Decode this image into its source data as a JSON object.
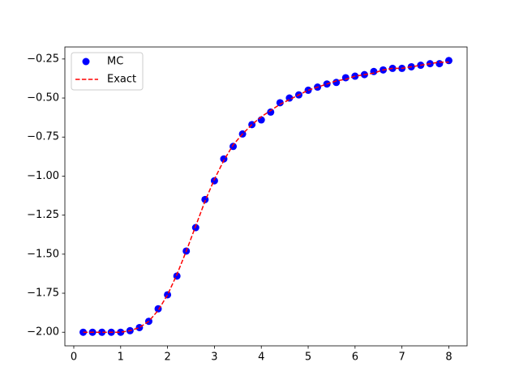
{
  "chart_data": {
    "type": "line",
    "x": [
      0.2,
      0.4,
      0.6,
      0.8,
      1.0,
      1.2,
      1.4,
      1.6,
      1.8,
      2.0,
      2.2,
      2.4,
      2.6,
      2.8,
      3.0,
      3.2,
      3.4,
      3.6,
      3.8,
      4.0,
      4.2,
      4.4,
      4.6,
      4.8,
      5.0,
      5.2,
      5.4,
      5.6,
      5.8,
      6.0,
      6.2,
      6.4,
      6.6,
      6.8,
      7.0,
      7.2,
      7.4,
      7.6,
      7.8,
      8.0
    ],
    "series": [
      {
        "name": "MC",
        "color": "#0000ff",
        "marker": "o",
        "values": [
          -2.0,
          -2.0,
          -2.0,
          -2.0,
          -2.0,
          -1.99,
          -1.97,
          -1.93,
          -1.85,
          -1.76,
          -1.64,
          -1.48,
          -1.33,
          -1.15,
          -1.03,
          -0.89,
          -0.81,
          -0.73,
          -0.67,
          -0.64,
          -0.59,
          -0.53,
          -0.5,
          -0.48,
          -0.45,
          -0.43,
          -0.41,
          -0.4,
          -0.37,
          -0.36,
          -0.35,
          -0.33,
          -0.32,
          -0.31,
          -0.31,
          -0.3,
          -0.29,
          -0.28,
          -0.28,
          -0.26
        ]
      },
      {
        "name": "Exact",
        "color": "#ff0000",
        "linestyle": "--",
        "values": [
          -2.0,
          -2.0,
          -2.0,
          -2.0,
          -2.0,
          -1.99,
          -1.97,
          -1.93,
          -1.86,
          -1.76,
          -1.63,
          -1.48,
          -1.32,
          -1.16,
          -1.02,
          -0.9,
          -0.8,
          -0.73,
          -0.67,
          -0.62,
          -0.58,
          -0.54,
          -0.51,
          -0.48,
          -0.45,
          -0.43,
          -0.41,
          -0.39,
          -0.38,
          -0.36,
          -0.35,
          -0.34,
          -0.32,
          -0.31,
          -0.31,
          -0.3,
          -0.29,
          -0.28,
          -0.27,
          -0.27
        ]
      }
    ],
    "xlim": [
      -0.19,
      8.39
    ],
    "xticks": [
      0,
      1,
      2,
      3,
      4,
      5,
      6,
      7,
      8
    ],
    "ylim": [
      -2.087,
      -0.173
    ],
    "yticks": [
      {
        "value": -2.0,
        "label": "−2.00"
      },
      {
        "value": -1.75,
        "label": "−1.75"
      },
      {
        "value": -1.5,
        "label": "−1.50"
      },
      {
        "value": -1.25,
        "label": "−1.25"
      },
      {
        "value": -1.0,
        "label": "−1.00"
      },
      {
        "value": -0.75,
        "label": "−0.75"
      },
      {
        "value": -0.5,
        "label": "−0.50"
      },
      {
        "value": -0.25,
        "label": "−0.25"
      }
    ],
    "legend": "upper left"
  }
}
